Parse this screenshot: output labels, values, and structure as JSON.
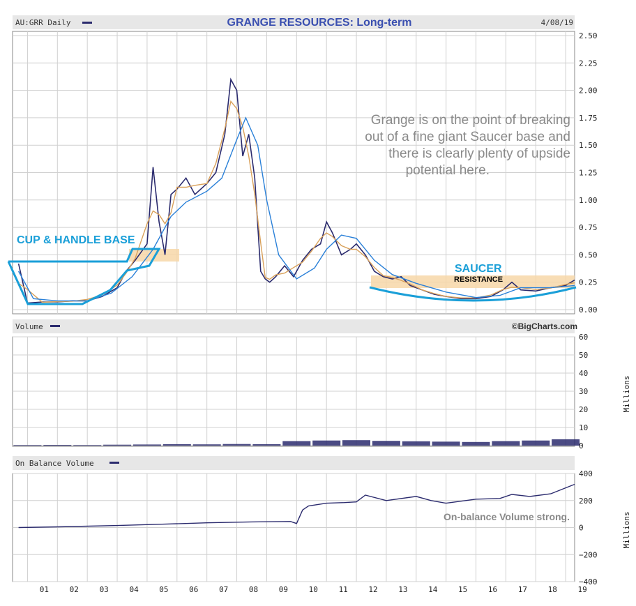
{
  "header": {
    "symbol_label": "AU:GRR Daily",
    "title": "GRANGE RESOURCES: Long-term",
    "date": "4/08/19"
  },
  "annotations": {
    "main_note": [
      "Grange is on the point of breaking",
      "out of a fine giant Saucer base and",
      "there is clearly plenty of upside",
      "potential here."
    ],
    "cup_handle": "CUP & HANDLE BASE",
    "saucer": "SAUCER",
    "resistance": "RESISTANCE",
    "obv_note": "On-balance Volume strong.",
    "copyright": "©BigCharts.com"
  },
  "panels": {
    "volume_label": "Volume",
    "obv_label": "On Balance Volume",
    "millions_label": "Millions"
  },
  "colors": {
    "price": "#2b2b6e",
    "ma_short": "#d9a15a",
    "ma_long": "#2a80d8",
    "annotation_cyan": "#1a9fd8",
    "resistance_fill": "#f7d7a8",
    "title": "#3a4fb0"
  },
  "chart_data": [
    {
      "type": "line",
      "title": "GRANGE RESOURCES: Long-term",
      "x_labels": [
        "01",
        "02",
        "03",
        "04",
        "05",
        "06",
        "07",
        "08",
        "09",
        "10",
        "11",
        "12",
        "13",
        "14",
        "15",
        "16",
        "17",
        "18",
        "19"
      ],
      "y_ticks": [
        "2.50",
        "2.25",
        "2.00",
        "1.75",
        "1.50",
        "1.25",
        "1.00",
        "0.75",
        "0.50",
        "0.25",
        "0.00"
      ],
      "ylim": [
        0,
        2.5
      ],
      "series": [
        {
          "values_x": [
            2000.7,
            2001.0,
            2001.5,
            2002.0,
            2002.5,
            2003.0,
            2003.5,
            2004.0,
            2004.3,
            2004.6,
            2005.0,
            2005.2,
            2005.4,
            2005.6,
            2005.8,
            2006.0,
            2006.3,
            2006.6,
            2007.0,
            2007.3,
            2007.6,
            2007.8,
            2008.0,
            2008.2,
            2008.4,
            2008.6,
            2008.8,
            2008.95,
            2009.1,
            2009.3,
            2009.6,
            2009.9,
            2010.2,
            2010.5,
            2010.8,
            2011.0,
            2011.2,
            2011.5,
            2011.8,
            2012.0,
            2012.3,
            2012.6,
            2012.9,
            2013.2,
            2013.5,
            2013.8,
            2014.2,
            2014.6,
            2015.0,
            2015.5,
            2016.0,
            2016.5,
            2016.9,
            2017.2,
            2017.5,
            2018.0,
            2018.5,
            2019.0,
            2019.3
          ],
          "values_y": [
            0.42,
            0.06,
            0.07,
            0.07,
            0.08,
            0.08,
            0.12,
            0.2,
            0.35,
            0.45,
            0.6,
            1.3,
            0.8,
            0.5,
            1.05,
            1.1,
            1.2,
            1.05,
            1.15,
            1.25,
            1.6,
            2.1,
            2.0,
            1.4,
            1.6,
            1.2,
            0.35,
            0.28,
            0.25,
            0.3,
            0.4,
            0.3,
            0.45,
            0.55,
            0.6,
            0.8,
            0.7,
            0.5,
            0.55,
            0.6,
            0.5,
            0.35,
            0.3,
            0.28,
            0.3,
            0.22,
            0.18,
            0.14,
            0.12,
            0.1,
            0.1,
            0.12,
            0.18,
            0.25,
            0.18,
            0.17,
            0.2,
            0.22,
            0.27
          ]
        },
        {
          "name": "",
          "values_x": [
            2000.7,
            2001.2,
            2002.0,
            2003.0,
            2003.8,
            2004.5,
            2005.2,
            2005.8,
            2006.3,
            2007.0,
            2007.5,
            2008.0,
            2008.3,
            2008.7,
            2009.0,
            2009.4,
            2010.0,
            2010.6,
            2011.0,
            2011.5,
            2012.0,
            2012.6,
            2013.2,
            2014.0,
            2015.0,
            2016.0,
            2016.8,
            2017.5,
            2018.5,
            2019.3
          ],
          "values_y": [
            0.35,
            0.1,
            0.08,
            0.08,
            0.15,
            0.3,
            0.55,
            0.85,
            0.98,
            1.08,
            1.2,
            1.55,
            1.75,
            1.5,
            1.0,
            0.5,
            0.28,
            0.38,
            0.55,
            0.68,
            0.65,
            0.45,
            0.32,
            0.24,
            0.16,
            0.11,
            0.13,
            0.2,
            0.2,
            0.22
          ]
        }
      ]
    },
    {
      "type": "bar",
      "title": "Volume",
      "y_ticks": [
        "60",
        "50",
        "40",
        "30",
        "20",
        "10",
        "0"
      ],
      "ylim": [
        0,
        60
      ],
      "ylabel": "Millions",
      "values_x": [
        2001,
        2002,
        2003,
        2004,
        2005,
        2006,
        2007,
        2008,
        2009,
        2010,
        2011,
        2012,
        2013,
        2014,
        2015,
        2016,
        2017,
        2018,
        2019
      ],
      "values": [
        0.3,
        0.4,
        0.3,
        0.5,
        0.6,
        0.8,
        0.7,
        0.9,
        0.8,
        2.5,
        2.8,
        3.0,
        2.6,
        2.4,
        2.2,
        2.0,
        2.5,
        2.8,
        3.5
      ]
    },
    {
      "type": "line",
      "title": "On Balance Volume",
      "y_ticks": [
        "400",
        "200",
        "0",
        "−200",
        "−400"
      ],
      "ylim": [
        -400,
        400
      ],
      "ylabel": "Millions",
      "values_x": [
        2000.7,
        2002.0,
        2004.0,
        2005.5,
        2007.0,
        2008.5,
        2009.8,
        2010.0,
        2010.2,
        2010.4,
        2011.0,
        2011.6,
        2012.0,
        2012.3,
        2013.0,
        2014.0,
        2014.5,
        2015.0,
        2016.0,
        2016.8,
        2017.2,
        2017.8,
        2018.5,
        2019.3
      ],
      "values_y": [
        0,
        5,
        15,
        25,
        35,
        42,
        45,
        30,
        130,
        160,
        180,
        185,
        190,
        240,
        200,
        230,
        200,
        180,
        210,
        215,
        245,
        230,
        250,
        320
      ]
    }
  ]
}
